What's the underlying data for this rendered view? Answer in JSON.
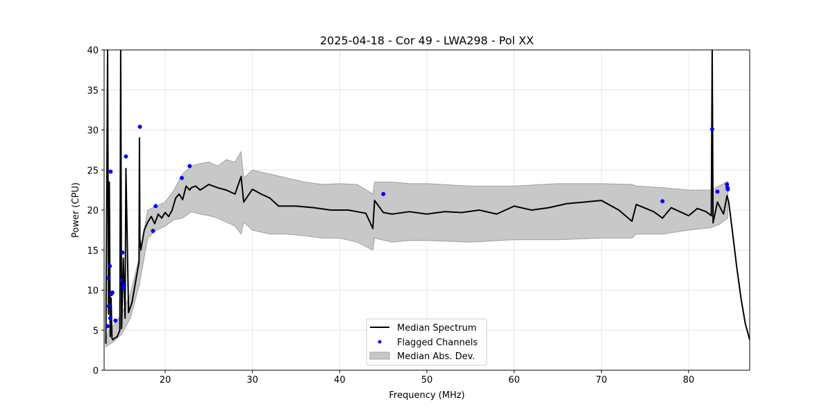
{
  "chart_data": {
    "type": "line",
    "title": "2025-04-18 - Cor 49 - LWA298 - Pol XX",
    "xlabel": "Frequency (MHz)",
    "ylabel": "Power (CPU)",
    "xlim": [
      13,
      87
    ],
    "ylim": [
      0,
      40
    ],
    "xticks": [
      20,
      30,
      40,
      50,
      60,
      70,
      80
    ],
    "yticks": [
      0,
      5,
      10,
      15,
      20,
      25,
      30,
      35,
      40
    ],
    "grid": true,
    "legend_position": "bottom-center",
    "colors": {
      "median": "#000000",
      "flagged": "#0000ff",
      "mad_fill": "#c8c8c8",
      "mad_edge": "#a0a0a0"
    },
    "series": [
      {
        "name": "Median Spectrum",
        "type": "line",
        "x": [
          13.2,
          13.4,
          13.5,
          13.6,
          13.7,
          13.8,
          13.9,
          14.0,
          14.2,
          14.5,
          14.8,
          14.9,
          15.0,
          15.2,
          15.4,
          15.5,
          15.8,
          16.2,
          16.6,
          17.0,
          17.05,
          17.1,
          17.2,
          17.6,
          18.0,
          18.4,
          18.8,
          19.2,
          19.6,
          20.0,
          20.4,
          20.8,
          21.2,
          21.6,
          22.0,
          22.4,
          22.8,
          23.0,
          23.5,
          24.0,
          25.0,
          26.0,
          27.0,
          28.0,
          28.7,
          29.0,
          30.0,
          31.0,
          32.0,
          33.0,
          35.0,
          37.0,
          39.0,
          41.0,
          42.0,
          43.0,
          43.8,
          44.0,
          45.0,
          46.0,
          48.0,
          50.0,
          52.0,
          54.0,
          56.0,
          58.0,
          60.0,
          62.0,
          64.0,
          66.0,
          68.0,
          70.0,
          72.0,
          73.5,
          74.0,
          76.0,
          77.0,
          78.0,
          80.0,
          81.0,
          82.0,
          82.6,
          82.7,
          82.8,
          83.3,
          84.0,
          84.4,
          84.6,
          85.0,
          85.5,
          86.0,
          86.5,
          87.0
        ],
        "y": [
          3.3,
          40.0,
          7.0,
          23.5,
          4.2,
          9.0,
          4.0,
          3.8,
          4.0,
          4.2,
          5.0,
          40.0,
          5.2,
          14.0,
          6.5,
          25.2,
          7.2,
          8.5,
          11.0,
          13.5,
          29.0,
          16.5,
          15.0,
          17.5,
          18.5,
          19.2,
          18.3,
          19.5,
          19.0,
          19.7,
          19.2,
          20.0,
          21.5,
          22.0,
          21.3,
          23.0,
          22.5,
          22.8,
          23.0,
          22.5,
          23.2,
          22.8,
          22.5,
          22.0,
          24.2,
          21.0,
          22.6,
          22.0,
          21.5,
          20.5,
          20.5,
          20.3,
          20.0,
          20.0,
          19.8,
          19.6,
          17.7,
          21.2,
          19.7,
          19.5,
          19.8,
          19.5,
          19.8,
          19.7,
          20.0,
          19.5,
          20.5,
          20.0,
          20.3,
          20.8,
          21.0,
          21.2,
          20.0,
          18.6,
          20.7,
          19.8,
          19.0,
          20.3,
          19.3,
          20.2,
          19.8,
          19.3,
          40.0,
          18.4,
          21.0,
          19.5,
          21.8,
          21.0,
          17.5,
          13.0,
          9.0,
          5.8,
          3.8
        ]
      },
      {
        "name": "Median Abs. Dev.",
        "type": "band",
        "x": [
          13.2,
          13.5,
          14.0,
          15.0,
          16.0,
          17.0,
          18.0,
          19.0,
          20.0,
          21.0,
          22.0,
          23.0,
          24.0,
          25.0,
          26.0,
          27.0,
          28.0,
          28.7,
          29.0,
          30.0,
          32.0,
          34.0,
          36.0,
          38.0,
          40.0,
          42.0,
          43.8,
          44.0,
          46.0,
          48.0,
          50.0,
          55.0,
          60.0,
          65.0,
          70.0,
          73.5,
          74.0,
          77.0,
          80.0,
          82.5,
          83.5,
          84.5
        ],
        "upper": [
          3.6,
          5.0,
          5.5,
          7.0,
          9.5,
          14.0,
          20.0,
          20.5,
          21.0,
          22.5,
          24.5,
          25.5,
          25.8,
          26.0,
          25.5,
          26.3,
          26.0,
          27.3,
          24.0,
          25.0,
          24.5,
          24.0,
          23.5,
          23.2,
          23.3,
          23.2,
          22.0,
          23.5,
          23.5,
          23.3,
          23.3,
          23.0,
          23.0,
          23.3,
          23.3,
          23.2,
          23.0,
          22.8,
          22.5,
          22.5,
          23.0,
          23.6
        ],
        "lower": [
          2.9,
          3.2,
          3.5,
          4.5,
          6.5,
          10.5,
          16.5,
          17.5,
          18.0,
          18.8,
          19.0,
          19.8,
          19.5,
          19.3,
          19.0,
          18.5,
          18.0,
          17.0,
          18.5,
          17.5,
          17.0,
          17.0,
          16.8,
          16.5,
          16.5,
          16.0,
          15.0,
          16.5,
          16.0,
          16.2,
          16.2,
          16.0,
          16.3,
          16.3,
          16.5,
          16.5,
          17.0,
          17.0,
          17.5,
          17.8,
          18.2,
          19.0
        ]
      },
      {
        "name": "Flagged Channels",
        "type": "scatter",
        "x": [
          13.4,
          13.5,
          13.55,
          13.65,
          13.7,
          13.75,
          13.8,
          13.95,
          14.3,
          15.0,
          15.1,
          15.15,
          15.3,
          15.5,
          17.1,
          18.6,
          18.9,
          21.9,
          22.8,
          45.0,
          77.0,
          82.7,
          83.3,
          84.4,
          84.45,
          84.5
        ],
        "y": [
          5.5,
          11.5,
          8.0,
          13.0,
          6.5,
          24.8,
          9.5,
          9.7,
          6.2,
          11.2,
          14.7,
          10.3,
          10.6,
          26.7,
          30.4,
          17.4,
          20.5,
          24.0,
          25.5,
          22.0,
          21.1,
          30.1,
          22.3,
          23.2,
          22.8,
          22.6
        ]
      }
    ],
    "legend": [
      "Median Spectrum",
      "Flagged Channels",
      "Median Abs. Dev."
    ]
  }
}
